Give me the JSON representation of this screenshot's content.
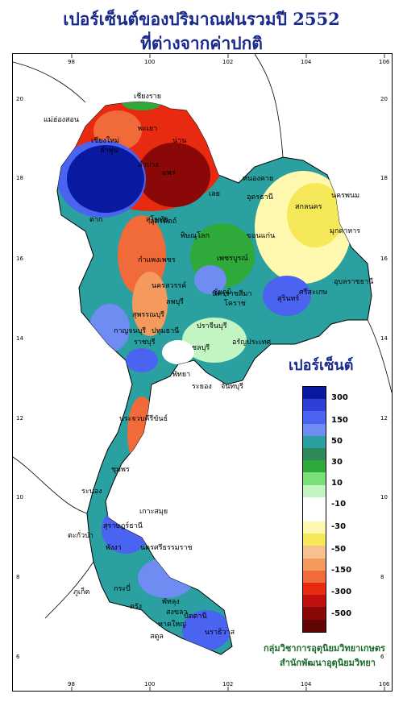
{
  "title_line1": "เปอร์เซ็นต์ของปริมาณฝนรวมปี  2552",
  "title_line2": "ที่ต่างจากค่าปกติ",
  "legend": {
    "title": "เปอร์เซ็นต์",
    "colors": [
      "#0a1aa0",
      "#2f3ed6",
      "#4a63f0",
      "#6e8cf2",
      "#2aa0a0",
      "#2e8a5a",
      "#2faa3a",
      "#7be07a",
      "#c2f5c2",
      "#ffffff",
      "#ffffff",
      "#fff9b0",
      "#f5e95a",
      "#f7c08f",
      "#f59a5f",
      "#f06a3a",
      "#e82a10",
      "#c01010",
      "#8a0808",
      "#600404"
    ],
    "labels": [
      "300",
      "150",
      "50",
      "30",
      "10",
      "-10",
      "-30",
      "-50",
      "-150",
      "-300",
      "-500"
    ]
  },
  "axes": {
    "x_ticks": [
      "98",
      "100",
      "102",
      "104",
      "106"
    ],
    "y_ticks": [
      "20",
      "18",
      "16",
      "14",
      "12",
      "10",
      "8",
      "6"
    ]
  },
  "places": [
    {
      "name": "เชียงราย"
    },
    {
      "name": "แม่ฮ่องสอน"
    },
    {
      "name": "เชียงใหม่"
    },
    {
      "name": "ลำพูน"
    },
    {
      "name": "พะเยา"
    },
    {
      "name": "น่าน"
    },
    {
      "name": "ลำปาง"
    },
    {
      "name": "แพร่"
    },
    {
      "name": "เลย"
    },
    {
      "name": "หนองคาย"
    },
    {
      "name": "อุดรธานี"
    },
    {
      "name": "นครพนม"
    },
    {
      "name": "สกลนคร"
    },
    {
      "name": "มุกดาหาร"
    },
    {
      "name": "ขอนแก่น"
    },
    {
      "name": "ตาก"
    },
    {
      "name": "สุโขทัย"
    },
    {
      "name": "อุตรดิตถ์"
    },
    {
      "name": "กำแพงเพชร"
    },
    {
      "name": "พิษณุโลก"
    },
    {
      "name": "เพชรบูรณ์"
    },
    {
      "name": "นครสวรรค์"
    },
    {
      "name": "ชัยภูมิ"
    },
    {
      "name": "อุบลราชธานี"
    },
    {
      "name": "ศรีสะเกษ"
    },
    {
      "name": "สุรินทร์"
    },
    {
      "name": "นครราชสีมา"
    },
    {
      "name": "โคราช"
    },
    {
      "name": "ลพบุรี"
    },
    {
      "name": "สุพรรณบุรี"
    },
    {
      "name": "กาญจนบุรี"
    },
    {
      "name": "ปทุมธานี"
    },
    {
      "name": "ราชบุรี"
    },
    {
      "name": "ปราจีนบุรี"
    },
    {
      "name": "อรัญประเทศ"
    },
    {
      "name": "ชลบุรี"
    },
    {
      "name": "พัทยา"
    },
    {
      "name": "ระยอง"
    },
    {
      "name": "จันทบุรี"
    },
    {
      "name": "ประจวบคีรีขันธ์"
    },
    {
      "name": "ชุมพร"
    },
    {
      "name": "ระนอง"
    },
    {
      "name": "เกาะสมุย"
    },
    {
      "name": "สุราษฎร์ธานี"
    },
    {
      "name": "ตะกั่วป่า"
    },
    {
      "name": "พังงา"
    },
    {
      "name": "นครศรีธรรมราช"
    },
    {
      "name": "ภูเก็ต"
    },
    {
      "name": "กระบี่"
    },
    {
      "name": "ตรัง"
    },
    {
      "name": "พัทลุง"
    },
    {
      "name": "สงขลา"
    },
    {
      "name": "หาดใหญ่"
    },
    {
      "name": "ปัตตานี"
    },
    {
      "name": "นราธิวาส"
    },
    {
      "name": "สตูล"
    }
  ],
  "credit_line1": "กลุ่มวิชาการอุตุนิยมวิทยาเกษตร",
  "credit_line2": "สำนักพัฒนาอุตุนิยมวิทยา"
}
